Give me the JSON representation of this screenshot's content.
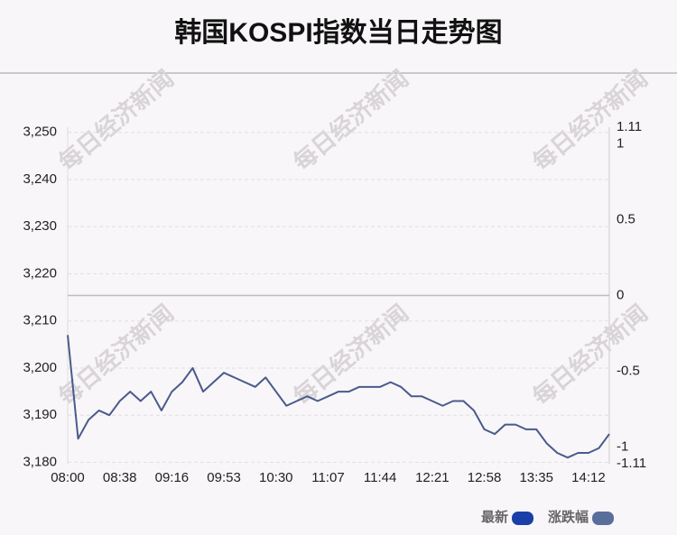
{
  "chart_data": {
    "type": "line",
    "title": "韩国KOSPI指数当日走势图",
    "watermark": "每日经济新闻",
    "categories": [
      "08:00",
      null,
      null,
      null,
      null,
      "08:38",
      null,
      null,
      null,
      null,
      "09:16",
      null,
      null,
      null,
      null,
      "09:53",
      null,
      null,
      null,
      null,
      "10:30",
      null,
      null,
      null,
      null,
      "11:07",
      null,
      null,
      null,
      null,
      "11:44",
      null,
      null,
      null,
      null,
      "12:21",
      null,
      null,
      null,
      null,
      "12:58",
      null,
      null,
      null,
      null,
      "13:35",
      null,
      null,
      null,
      null,
      "14:12",
      null,
      null
    ],
    "series": [
      {
        "name": "最新",
        "color": "#4a5a8c",
        "values": [
          3207,
          3185,
          3189,
          3191,
          3190,
          3193,
          3195,
          3193,
          3195,
          3191,
          3195,
          3197,
          3200,
          3195,
          3197,
          3199,
          3198,
          3197,
          3196,
          3198,
          3195,
          3192,
          3193,
          3194,
          3193,
          3194,
          3195,
          3195,
          3196,
          3196,
          3196,
          3197,
          3196,
          3194,
          3194,
          3193,
          3192,
          3193,
          3193,
          3191,
          3187,
          3186,
          3188,
          3188,
          3187,
          3187,
          3184,
          3182,
          3181,
          3182,
          3182,
          3183,
          3186
        ]
      }
    ],
    "legend": [
      {
        "name": "最新",
        "color": "#1a3fa8"
      },
      {
        "name": "涨跌幅",
        "color": "#5a6e9c"
      }
    ],
    "ylim": [
      3179.7,
      3251.1
    ],
    "yticks": [
      {
        "value": 3180,
        "label": "3,180"
      },
      {
        "value": 3190,
        "label": "3,190"
      },
      {
        "value": 3200,
        "label": "3,200"
      },
      {
        "value": 3210,
        "label": "3,210"
      },
      {
        "value": 3220,
        "label": "3,220"
      },
      {
        "value": 3230,
        "label": "3,230"
      },
      {
        "value": 3240,
        "label": "3,240"
      },
      {
        "value": 3250,
        "label": "3,250"
      }
    ],
    "y2lim": [
      -1.11,
      1.11
    ],
    "y2ticks": [
      -1.11,
      -1,
      -0.5,
      0,
      0.5,
      1,
      1.11
    ],
    "grid": true
  }
}
